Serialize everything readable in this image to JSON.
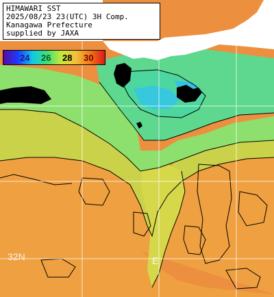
{
  "header": {
    "lines": [
      "HIMAWARI SST",
      "2025/08/23 23(UTC) 3H Comp.",
      "Kanagawa Prefecture",
      "supplied by JAXA"
    ]
  },
  "colorbar": {
    "labels": [
      "24",
      "26",
      "28",
      "30"
    ],
    "label_colors": [
      "#1a1a8c",
      "#0d5a2a",
      "#000000",
      "#7a0000"
    ],
    "gradient_colors": [
      "#5a0aa0",
      "#1a3cff",
      "#12c8e6",
      "#3be07a",
      "#c8e83a",
      "#f2c03a",
      "#f07818",
      "#e01818"
    ]
  },
  "grid": {
    "latitude_label": "32N",
    "longitude_label": "E"
  },
  "colors": {
    "land": "#000000",
    "no_data": "#ffffff",
    "warm_sea": "#ec9040",
    "mid_sea": "#cad24a",
    "cool_sea": "#8ee06e",
    "cold_sea": "#4cd6a0",
    "coldest_sea": "#38c8de",
    "contour": "#000000",
    "gridline": "#ffffff"
  }
}
